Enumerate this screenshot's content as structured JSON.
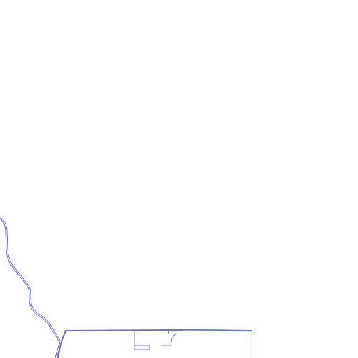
{
  "map": {
    "style": "outline",
    "colors": {
      "background": "#ffffff",
      "boundary": "#5a62d8",
      "boundary_light": "#7277e6",
      "accent_faint": "#b9e8ef"
    },
    "features": [
      {
        "id": "river-boundary",
        "kind": "double-line boundary"
      },
      {
        "id": "parcel-outline",
        "kind": "polygon outline"
      },
      {
        "id": "parcel-notch",
        "kind": "small rectangular notch"
      }
    ]
  }
}
